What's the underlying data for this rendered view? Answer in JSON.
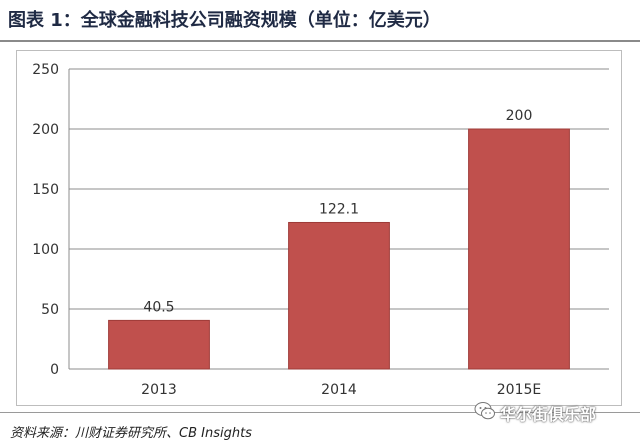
{
  "title": "图表 1：全球金融科技公司融资规模（单位：亿美元）",
  "source": "资料来源：川财证券研究所、CB Insights",
  "watermark": {
    "icon": "wechat-icon",
    "text": "华尔街俱乐部"
  },
  "chart_data": {
    "type": "bar",
    "title": "",
    "categories": [
      "2013",
      "2014",
      "2015E"
    ],
    "values": [
      40.5,
      122.1,
      200
    ],
    "data_labels": [
      "40.5",
      "122.1",
      "200"
    ],
    "xlabel": "",
    "ylabel": "",
    "ylim": [
      0,
      250
    ],
    "yticks": [
      0,
      50,
      100,
      150,
      200,
      250
    ],
    "grid": true,
    "legend": "none",
    "bar_color": "#c0504d"
  }
}
